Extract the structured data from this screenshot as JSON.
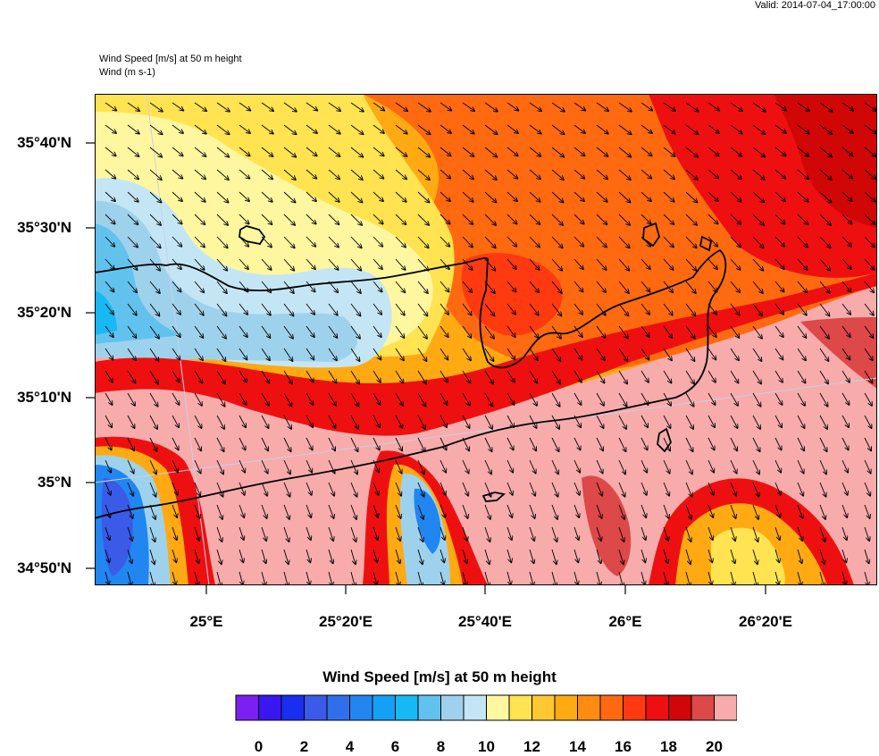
{
  "header": {
    "valid": "Valid: 2014-07-04_17:00:00",
    "title_line1": "Wind Speed [m/s] at 50 m height",
    "title_line2": "Wind   (m s-1)"
  },
  "axes": {
    "lat_labels": [
      "35°40'N",
      "35°30'N",
      "35°20'N",
      "35°10'N",
      "35°N",
      "34°50'N"
    ],
    "lon_labels": [
      "25°E",
      "25°20'E",
      "25°40'E",
      "26°E",
      "26°20'E"
    ]
  },
  "colorbar": {
    "title": "Wind Speed [m/s] at 50 m height",
    "labels": [
      "0",
      "2",
      "4",
      "6",
      "8",
      "10",
      "12",
      "14",
      "16",
      "18",
      "20"
    ],
    "colors": [
      "#7b20f0",
      "#3a16f0",
      "#1a2ef0",
      "#3a5ae8",
      "#2f6fea",
      "#2186f0",
      "#14a0f5",
      "#16b9f3",
      "#62c2ee",
      "#9ed2ec",
      "#c4e6f4",
      "#fff6a0",
      "#ffe350",
      "#ffc830",
      "#ffaa12",
      "#ff8c10",
      "#ff6a10",
      "#ff3a10",
      "#ee1010",
      "#d10606",
      "#dd4848",
      "#f7abab"
    ]
  }
}
